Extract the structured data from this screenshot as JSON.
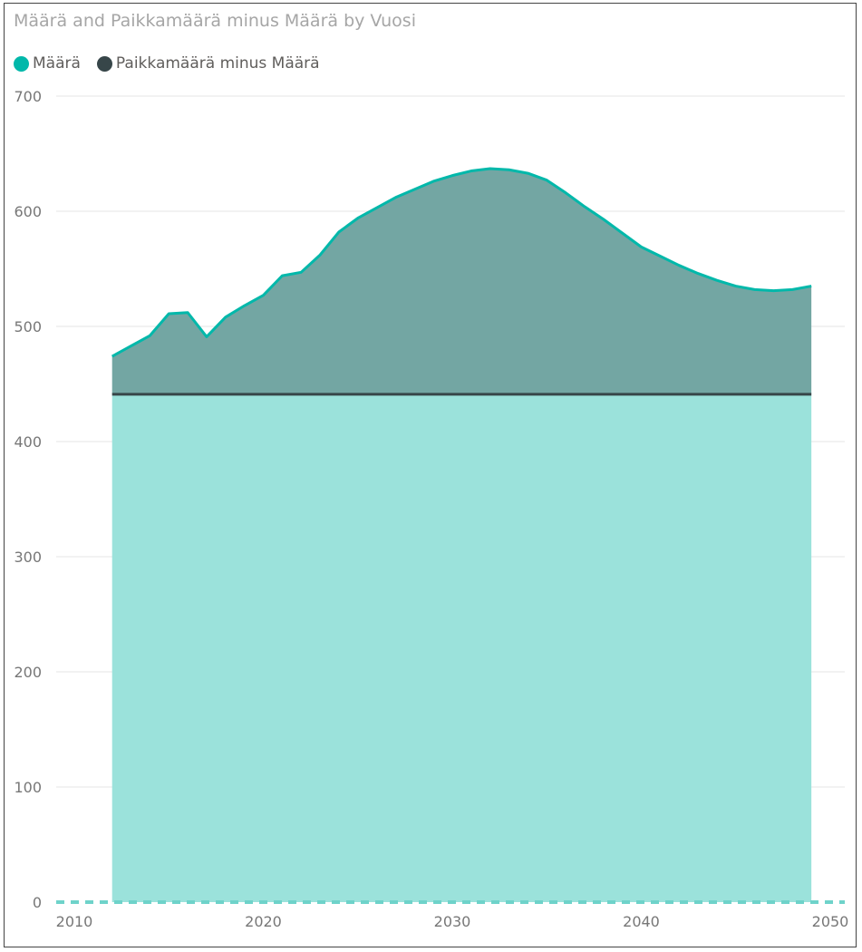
{
  "chart_data": {
    "type": "area",
    "title": "Määrä and Paikkamäärä minus Määrä by Vuosi",
    "xlabel": "",
    "ylabel": "",
    "xlim": [
      2010,
      2050
    ],
    "ylim": [
      0,
      700
    ],
    "x_ticks": [
      "2010",
      "2020",
      "2030",
      "2040",
      "2050"
    ],
    "y_ticks": [
      "0",
      "100",
      "200",
      "300",
      "400",
      "500",
      "600",
      "700"
    ],
    "grid": true,
    "legend_position": "top-left",
    "x": [
      2012,
      2013,
      2014,
      2015,
      2016,
      2017,
      2018,
      2019,
      2020,
      2021,
      2022,
      2023,
      2024,
      2025,
      2026,
      2027,
      2028,
      2029,
      2030,
      2031,
      2032,
      2033,
      2034,
      2035,
      2036,
      2037,
      2038,
      2039,
      2040,
      2041,
      2042,
      2043,
      2044,
      2045,
      2046,
      2047,
      2048,
      2049
    ],
    "series": [
      {
        "name": "Määrä",
        "color": "#01b8aa",
        "fill": "#9be2db",
        "values": [
          441,
          441,
          441,
          441,
          441,
          441,
          441,
          441,
          441,
          441,
          441,
          441,
          441,
          441,
          441,
          441,
          441,
          441,
          441,
          441,
          441,
          441,
          441,
          441,
          441,
          441,
          441,
          441,
          441,
          441,
          441,
          441,
          441,
          441,
          441,
          441,
          441,
          441
        ]
      },
      {
        "name": "Paikkamäärä minus Määrä",
        "color": "#374649",
        "fill": "#73a6a3",
        "values": [
          33,
          42,
          51,
          70,
          71,
          50,
          67,
          77,
          86,
          103,
          106,
          121,
          141,
          153,
          162,
          171,
          178,
          185,
          190,
          194,
          196,
          195,
          192,
          186,
          175,
          163,
          152,
          140,
          128,
          120,
          112,
          105,
          99,
          94,
          91,
          90,
          91,
          94
        ]
      }
    ]
  }
}
